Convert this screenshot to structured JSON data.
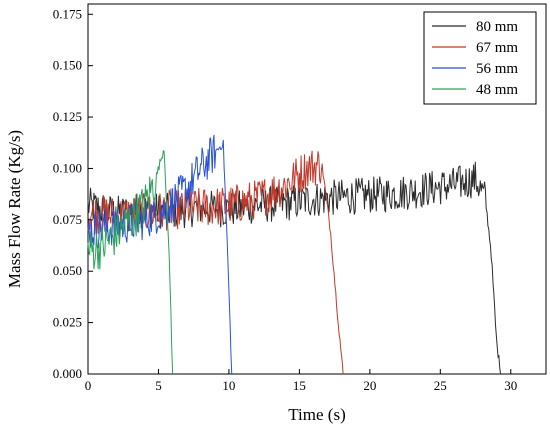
{
  "chart_data": {
    "type": "line",
    "title": "",
    "xlabel": "Time (s)",
    "ylabel": "Mass Flow Rate (Kg/s)",
    "xlim": [
      0,
      32.5
    ],
    "ylim": [
      0,
      0.18
    ],
    "x_ticks": [
      {
        "v": 0,
        "label": "0"
      },
      {
        "v": 5,
        "label": "5"
      },
      {
        "v": 10,
        "label": "10"
      },
      {
        "v": 15,
        "label": "15"
      },
      {
        "v": 20,
        "label": "20"
      },
      {
        "v": 25,
        "label": "25"
      },
      {
        "v": 30,
        "label": "30"
      }
    ],
    "y_ticks": [
      {
        "v": 0,
        "label": "0.000"
      },
      {
        "v": 0.025,
        "label": "0.025"
      },
      {
        "v": 0.05,
        "label": "0.050"
      },
      {
        "v": 0.075,
        "label": "0.075"
      },
      {
        "v": 0.1,
        "label": "0.100"
      },
      {
        "v": 0.125,
        "label": "0.125"
      },
      {
        "v": 0.15,
        "label": "0.150"
      },
      {
        "v": 0.175,
        "label": "0.175"
      }
    ],
    "grid": false,
    "legend_position": "top-right",
    "series": [
      {
        "name": "80 mm",
        "color": "#2b2b2b",
        "x": [
          0,
          2,
          4,
          6,
          8,
          10,
          12,
          14,
          16,
          18,
          20,
          22,
          24,
          26,
          27.5,
          28.2,
          28.6,
          29.0,
          29.3
        ],
        "y": [
          0.082,
          0.078,
          0.08,
          0.079,
          0.081,
          0.08,
          0.082,
          0.083,
          0.085,
          0.086,
          0.087,
          0.088,
          0.09,
          0.092,
          0.095,
          0.085,
          0.06,
          0.015,
          0.0
        ],
        "noise": 0.009
      },
      {
        "name": "67 mm",
        "color": "#c0392b",
        "x": [
          0,
          2,
          4,
          6,
          8,
          10,
          12,
          14,
          15.5,
          16.6,
          17.2,
          17.7,
          18.1
        ],
        "y": [
          0.078,
          0.077,
          0.078,
          0.08,
          0.081,
          0.082,
          0.085,
          0.092,
          0.1,
          0.102,
          0.07,
          0.03,
          0.0
        ],
        "noise": 0.01
      },
      {
        "name": "56 mm",
        "color": "#2a52d4",
        "x": [
          0,
          2,
          4,
          5.5,
          7,
          8,
          9,
          9.6,
          9.9,
          10.2
        ],
        "y": [
          0.07,
          0.072,
          0.075,
          0.08,
          0.09,
          0.1,
          0.108,
          0.112,
          0.06,
          0.0
        ],
        "noise": 0.01
      },
      {
        "name": "48 mm",
        "color": "#2ca05a",
        "x": [
          0,
          1,
          2,
          3,
          4,
          4.8,
          5.4,
          5.8,
          6.0
        ],
        "y": [
          0.06,
          0.062,
          0.068,
          0.075,
          0.082,
          0.095,
          0.11,
          0.05,
          0.0
        ],
        "noise": 0.011
      }
    ]
  }
}
